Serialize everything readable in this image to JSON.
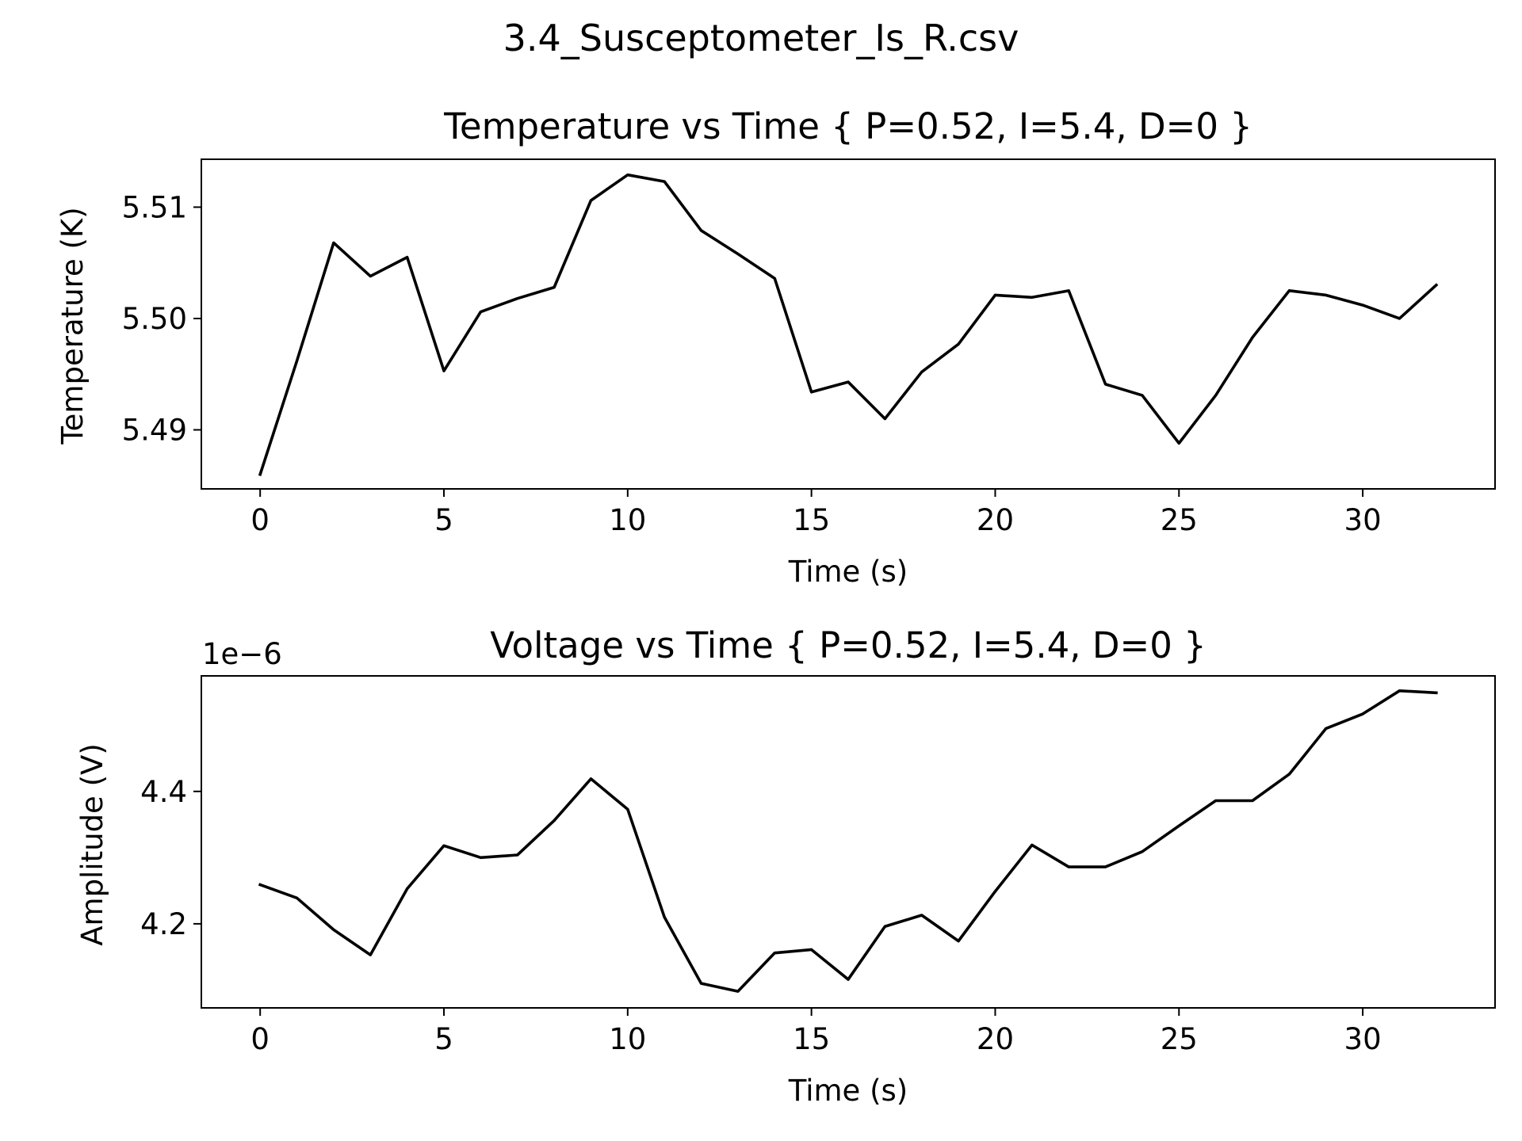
{
  "figure": {
    "suptitle": "3.4_Susceptometer_Is_R.csv"
  },
  "chart_data": [
    {
      "type": "line",
      "title": "Temperature vs Time { P=0.52, I=5.4, D=0 }",
      "xlabel": "Time (s)",
      "ylabel": "Temperature (K)",
      "offset_text": "",
      "xlim": [
        -1.6,
        33.6
      ],
      "ylim": [
        5.4847,
        5.5143
      ],
      "xticks": [
        0,
        5,
        10,
        15,
        20,
        25,
        30
      ],
      "xtick_labels": [
        "0",
        "5",
        "10",
        "15",
        "20",
        "25",
        "30"
      ],
      "yticks": [
        5.49,
        5.5,
        5.51
      ],
      "ytick_labels": [
        "5.49",
        "5.50",
        "5.51"
      ],
      "grid": false,
      "line_color": "#000000",
      "series": [
        {
          "x": [
            0,
            1,
            2,
            3,
            4,
            5,
            6,
            7,
            8,
            9,
            10,
            11,
            12,
            13,
            14,
            15,
            16,
            17,
            18,
            19,
            20,
            21,
            22,
            23,
            24,
            25,
            26,
            27,
            28,
            29,
            30,
            31,
            32
          ],
          "y": [
            5.486,
            5.4962,
            5.5068,
            5.5038,
            5.5055,
            5.4953,
            5.5006,
            5.5018,
            5.5028,
            5.5106,
            5.5129,
            5.5123,
            5.5079,
            5.5058,
            5.5036,
            5.4934,
            5.4943,
            5.491,
            5.4952,
            5.4977,
            5.5021,
            5.5019,
            5.5025,
            5.4941,
            5.4931,
            5.4888,
            5.4931,
            5.4983,
            5.5025,
            5.5021,
            5.5012,
            5.5,
            5.503
          ]
        }
      ]
    },
    {
      "type": "line",
      "title": "Voltage vs Time { P=0.52, I=5.4, D=0 }",
      "xlabel": "Time (s)",
      "ylabel": "Amplitude (V)",
      "offset_text": "1e−6",
      "xlim": [
        -1.6,
        33.6
      ],
      "ylim": [
        4.073,
        4.5745
      ],
      "xticks": [
        0,
        5,
        10,
        15,
        20,
        25,
        30
      ],
      "xtick_labels": [
        "0",
        "5",
        "10",
        "15",
        "20",
        "25",
        "30"
      ],
      "yticks": [
        4.2,
        4.4
      ],
      "ytick_labels": [
        "4.2",
        "4.4"
      ],
      "grid": false,
      "line_color": "#000000",
      "series": [
        {
          "x": [
            0,
            1,
            2,
            3,
            4,
            5,
            6,
            7,
            8,
            9,
            10,
            11,
            12,
            13,
            14,
            15,
            16,
            17,
            18,
            19,
            20,
            21,
            22,
            23,
            24,
            25,
            26,
            27,
            28,
            29,
            30,
            31,
            32
          ],
          "y": [
            4.259,
            4.239,
            4.191,
            4.153,
            4.253,
            4.318,
            4.3,
            4.304,
            4.356,
            4.419,
            4.373,
            4.21,
            4.11,
            4.098,
            4.156,
            4.161,
            4.116,
            4.196,
            4.213,
            4.174,
            4.249,
            4.319,
            4.286,
            4.286,
            4.309,
            4.348,
            4.386,
            4.386,
            4.426,
            4.495,
            4.517,
            4.552,
            4.549
          ]
        }
      ]
    }
  ]
}
